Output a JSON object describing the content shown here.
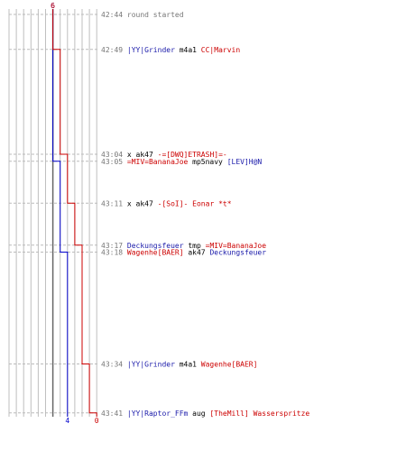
{
  "chart_data": {
    "type": "line",
    "start_scores": {
      "blue": "6",
      "red": "6"
    },
    "end_scores": {
      "blue": "4",
      "red": "0"
    },
    "series": [
      {
        "team": "blue",
        "color": "#0000cc"
      },
      {
        "team": "red",
        "color": "#cc0000"
      }
    ],
    "events": [
      {
        "time": "42:44",
        "blue": 6,
        "red": 6,
        "segments": [
          {
            "text": "round started",
            "role": "gray"
          }
        ]
      },
      {
        "time": "42:49",
        "blue": 6,
        "red": 5,
        "segments": [
          {
            "text": "|YY|Grinder",
            "role": "blue"
          },
          {
            "text": " m4a1 ",
            "role": "black"
          },
          {
            "text": "CC|Marvin",
            "role": "red"
          }
        ]
      },
      {
        "time": "43:04",
        "blue": 6,
        "red": 4,
        "segments": [
          {
            "text": "x",
            "role": "black"
          },
          {
            "text": " ak47 ",
            "role": "black"
          },
          {
            "text": "-=[DWQ]ETRASH]=-",
            "role": "red"
          }
        ]
      },
      {
        "time": "43:05",
        "blue": 5,
        "red": 4,
        "segments": [
          {
            "text": "=MIV=BananaJoe",
            "role": "red"
          },
          {
            "text": " mp5navy ",
            "role": "black"
          },
          {
            "text": "[LEV]H@N",
            "role": "blue"
          }
        ]
      },
      {
        "time": "43:11",
        "blue": 5,
        "red": 3,
        "segments": [
          {
            "text": "x",
            "role": "black"
          },
          {
            "text": " ak47 ",
            "role": "black"
          },
          {
            "text": "-[SoI]- Eonar *t*",
            "role": "red"
          }
        ]
      },
      {
        "time": "43:17",
        "blue": 5,
        "red": 2,
        "segments": [
          {
            "text": "Deckungsfeuer",
            "role": "blue"
          },
          {
            "text": " tmp ",
            "role": "black"
          },
          {
            "text": "=MIV=BananaJoe",
            "role": "red"
          }
        ]
      },
      {
        "time": "43:18",
        "blue": 4,
        "red": 2,
        "segments": [
          {
            "text": "Wagenhe[BAER]",
            "role": "red"
          },
          {
            "text": " ak47 ",
            "role": "black"
          },
          {
            "text": "Deckungsfeuer",
            "role": "blue"
          }
        ]
      },
      {
        "time": "43:34",
        "blue": 4,
        "red": 1,
        "segments": [
          {
            "text": "|YY|Grinder",
            "role": "blue"
          },
          {
            "text": " m4a1 ",
            "role": "black"
          },
          {
            "text": "Wagenhe[BAER]",
            "role": "red"
          }
        ]
      },
      {
        "time": "43:41",
        "blue": 4,
        "red": 0,
        "segments": [
          {
            "text": "|YY|Raptor_FFm",
            "role": "blue"
          },
          {
            "text": " aug ",
            "role": "black"
          },
          {
            "text": "[TheMill]",
            "role": "red"
          },
          {
            "text": " Wasserspritze",
            "role": "red"
          }
        ]
      }
    ]
  }
}
